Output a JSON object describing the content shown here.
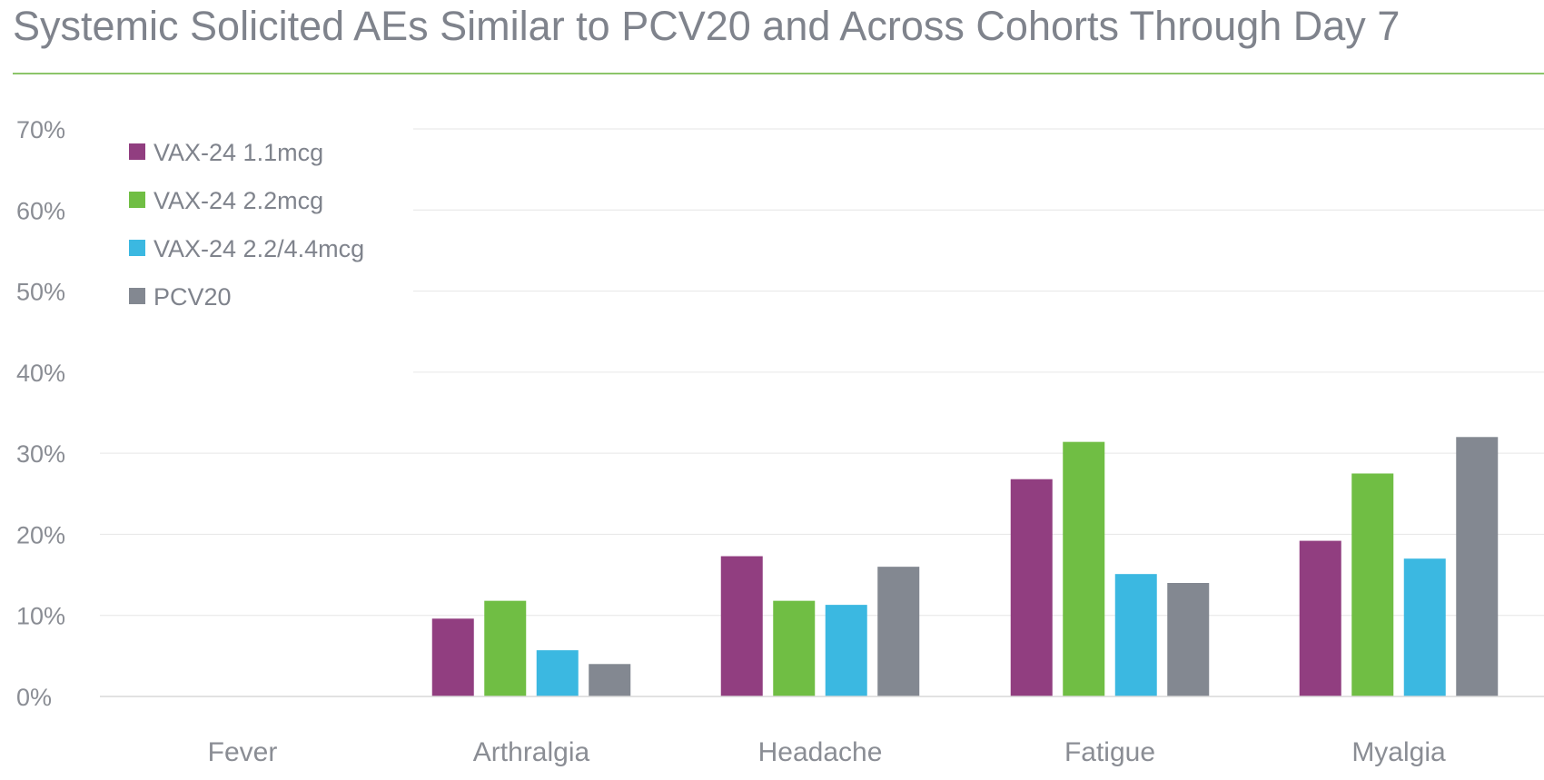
{
  "chart_data": {
    "type": "bar",
    "title": "Systemic Solicited AEs Similar to PCV20 and Across Cohorts Through Day 7",
    "categories": [
      "Fever",
      "Arthralgia",
      "Headache",
      "Fatigue",
      "Myalgia"
    ],
    "series": [
      {
        "name": "VAX-24 1.1mcg",
        "color": "#913e80",
        "values": [
          0.0,
          9.6,
          17.3,
          26.8,
          19.2
        ]
      },
      {
        "name": "VAX-24 2.2mcg",
        "color": "#70be44",
        "values": [
          0.0,
          11.8,
          11.8,
          31.4,
          27.5
        ]
      },
      {
        "name": "VAX-24 2.2/4.4mcg",
        "color": "#3bb8e1",
        "values": [
          0.0,
          5.7,
          11.3,
          15.1,
          17.0
        ]
      },
      {
        "name": "PCV20",
        "color": "#838891",
        "values": [
          0.0,
          4.0,
          16.0,
          14.0,
          32.0
        ]
      }
    ],
    "yticks": [
      "0%",
      "10%",
      "20%",
      "30%",
      "40%",
      "50%",
      "60%",
      "70%"
    ],
    "ylim": [
      0,
      70
    ],
    "xlabel": "",
    "ylabel": "",
    "grid": true,
    "legend": "top-left"
  }
}
